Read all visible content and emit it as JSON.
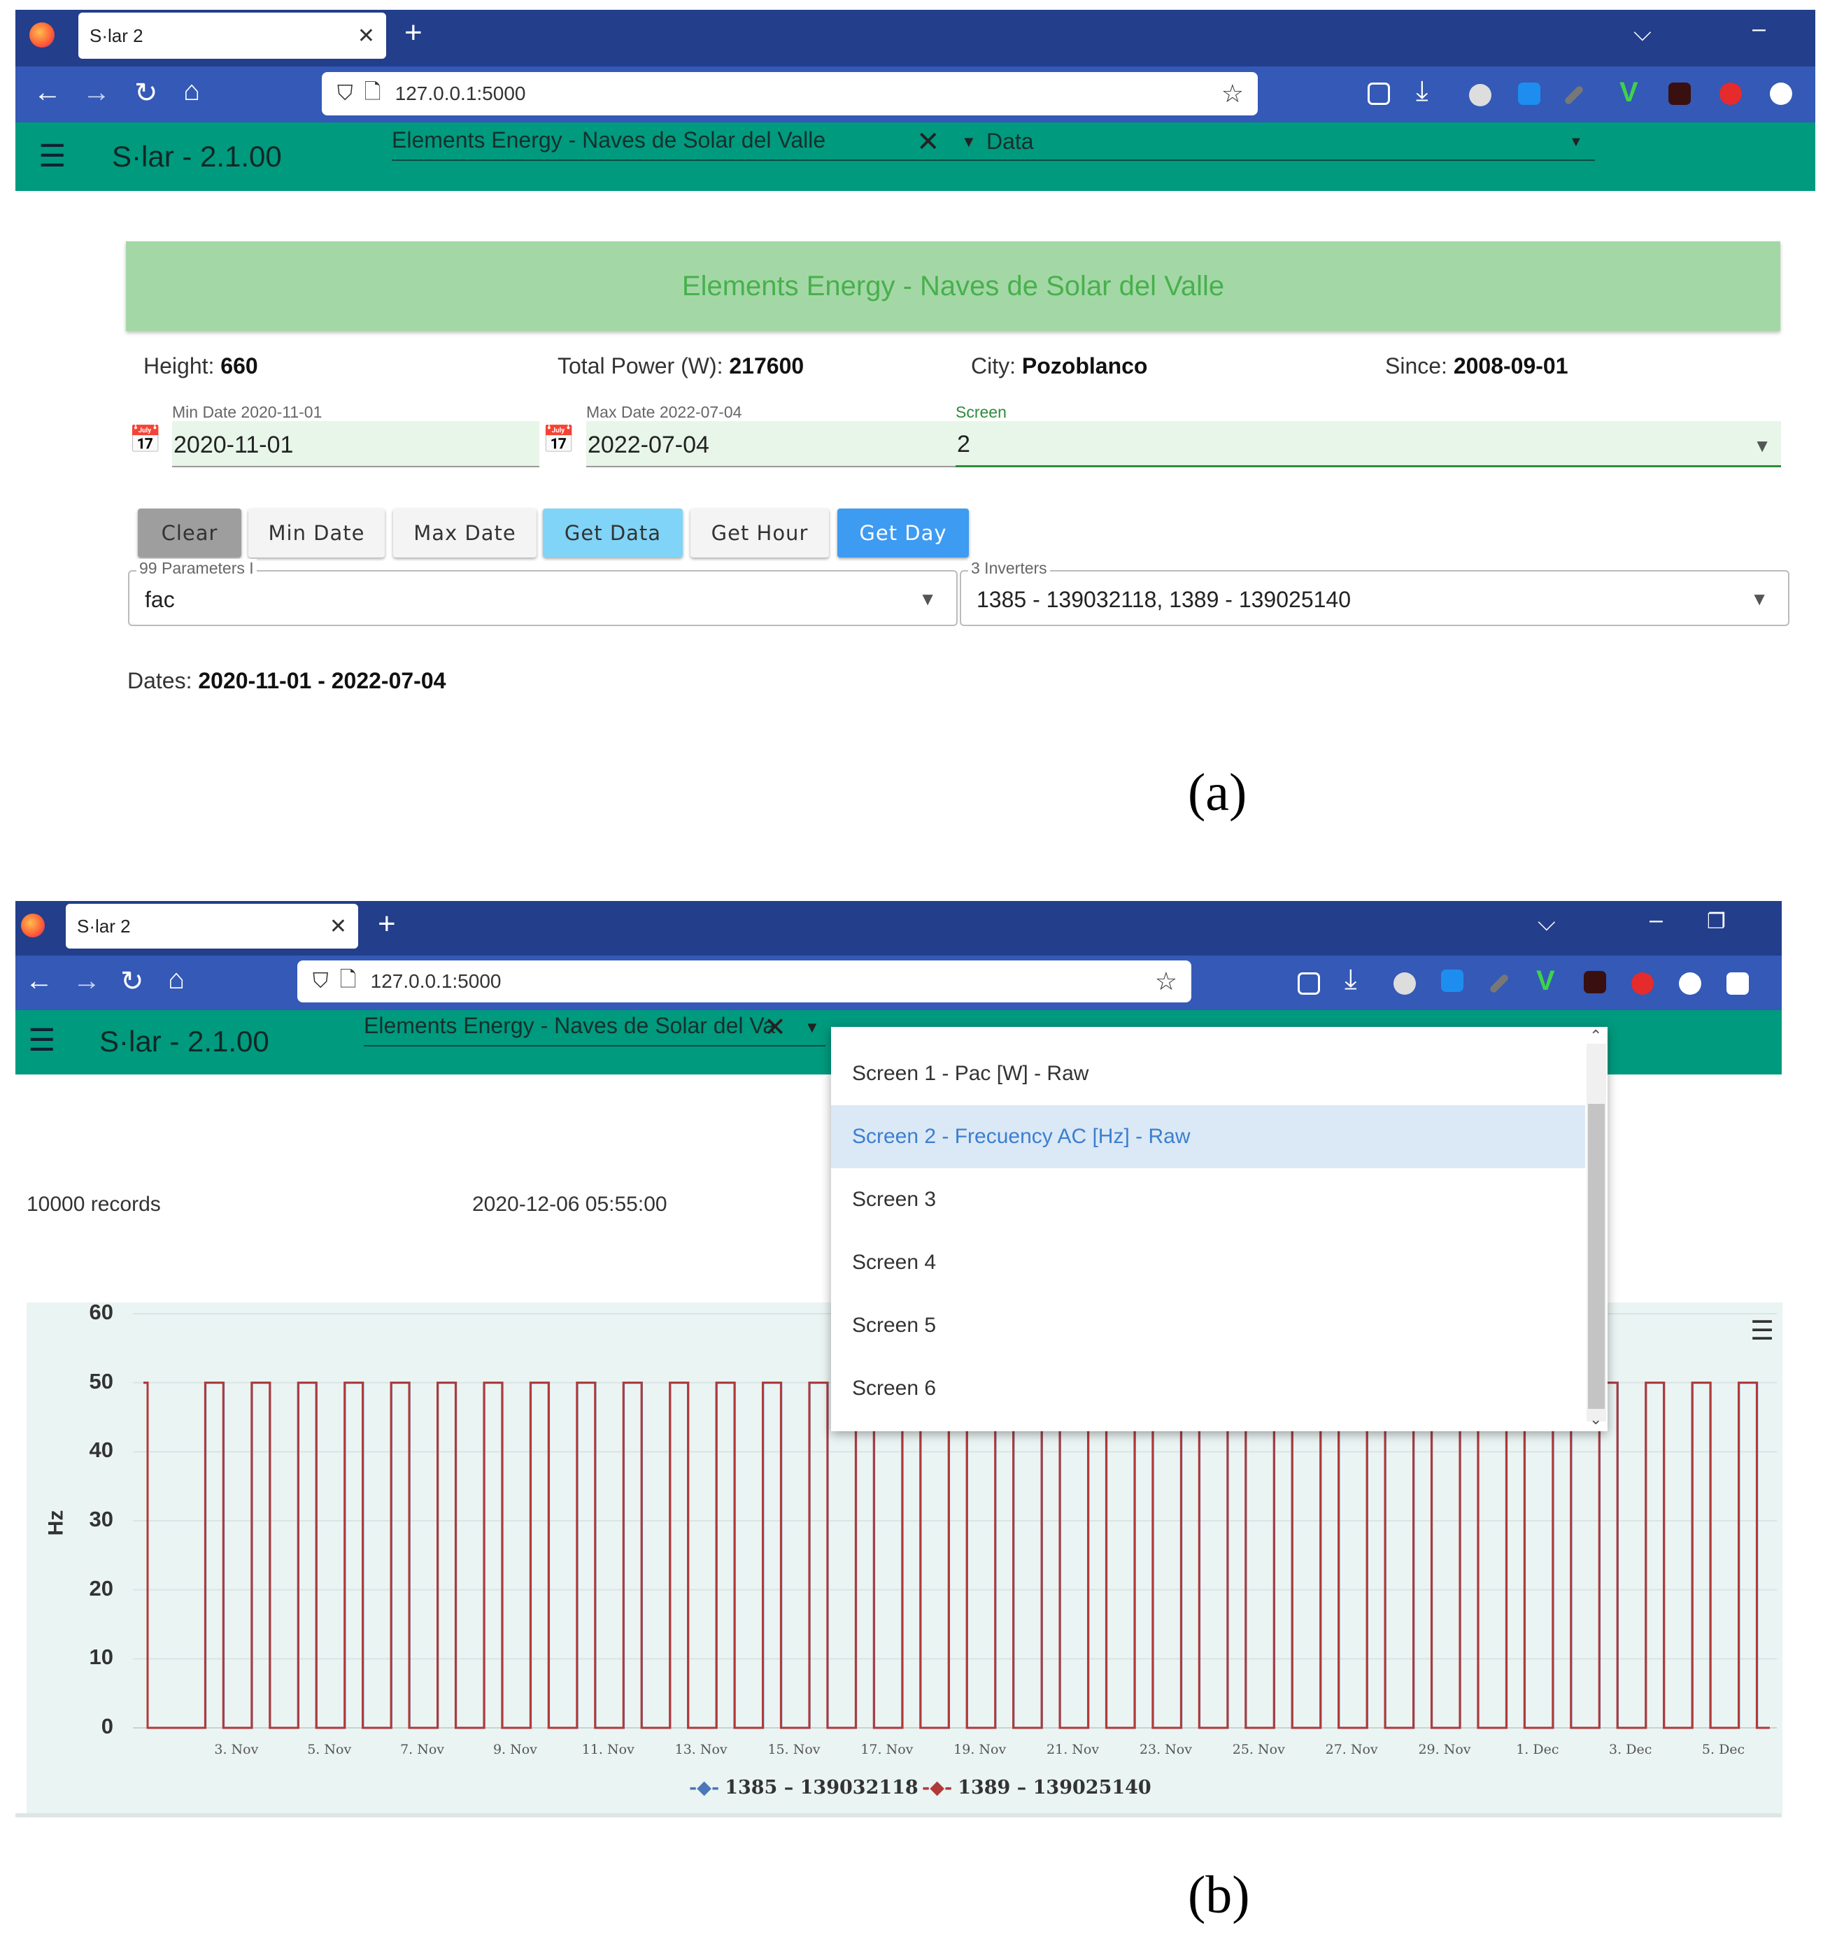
{
  "panel_a": {
    "tab_title": "S·lar 2",
    "url": "127.0.0.1:5000",
    "app_title": "S·lar - 2.1.00",
    "site_select": "Elements Energy - Naves de Solar del Valle",
    "view_select": "Data",
    "banner": "Elements Energy - Naves de Solar del Valle",
    "info": {
      "height_label": "Height:",
      "height_value": "660",
      "power_label": "Total Power (W):",
      "power_value": "217600",
      "city_label": "City:",
      "city_value": "Pozoblanco",
      "since_label": "Since:",
      "since_value": "2008-09-01"
    },
    "min_date": {
      "label": "Min Date 2020-11-01",
      "value": "2020-11-01"
    },
    "max_date": {
      "label": "Max Date 2022-07-04",
      "value": "2022-07-04"
    },
    "screen": {
      "label": "Screen",
      "value": "2"
    },
    "buttons": {
      "clear": "Clear",
      "min_date": "Min Date",
      "max_date": "Max Date",
      "get_data": "Get Data",
      "get_hour": "Get Hour",
      "get_day": "Get Day"
    },
    "parameters": {
      "label": "99 Parameters I",
      "value": "fac"
    },
    "inverters": {
      "label": "3 Inverters",
      "value": "1385 - 139032118, 1389 - 139025140"
    },
    "dates_label": "Dates:",
    "dates_value": "2020-11-01 - 2022-07-04",
    "caption": "(a)"
  },
  "panel_b": {
    "tab_title": "S·lar 2",
    "url": "127.0.0.1:5000",
    "app_title": "S·lar - 2.1.00",
    "site_select": "Elements Energy - Naves de Solar del Va",
    "records": "10000 records",
    "timestamp": "2020-12-06 05:55:00",
    "dropdown": [
      {
        "label": "Screen 1 - Pac [W] - Raw",
        "selected": false
      },
      {
        "label": "Screen 2 - Frecuency AC [Hz] - Raw",
        "selected": true
      },
      {
        "label": "Screen 3",
        "selected": false
      },
      {
        "label": "Screen 4",
        "selected": false
      },
      {
        "label": "Screen 5",
        "selected": false
      },
      {
        "label": "Screen 6",
        "selected": false
      }
    ],
    "caption": "(b)"
  },
  "colors": {
    "tabbar": "#233e8b",
    "navbar": "#3459b6",
    "app_header": "#009a7e",
    "banner": "#a3d8a6",
    "get_data": "#80d4f7",
    "get_day": "#3d9bf2",
    "series_1385": "#4a78b8",
    "series_1389": "#b03a3a"
  },
  "chart_data": {
    "type": "line",
    "ylabel": "Hz",
    "ylim": [
      0,
      60
    ],
    "yticks": [
      0,
      10,
      20,
      30,
      40,
      50,
      60
    ],
    "x_tick_labels": [
      "3. Nov",
      "5. Nov",
      "7. Nov",
      "9. Nov",
      "11. Nov",
      "13. Nov",
      "15. Nov",
      "17. Nov",
      "19. Nov",
      "21. Nov",
      "23. Nov",
      "25. Nov",
      "27. Nov",
      "29. Nov",
      "1. Dec",
      "3. Dec",
      "5. Dec"
    ],
    "x_range": [
      "2020-11-01",
      "2020-12-06"
    ],
    "series": [
      {
        "name": "1385 – 139032118",
        "color": "#4a78b8",
        "pattern": "daily square wave: ~50 Hz during daytime, 0 at night"
      },
      {
        "name": "1389 – 139025140",
        "color": "#b03a3a",
        "pattern": "daily square wave: ~50 Hz during daytime, 0 at night"
      }
    ]
  }
}
